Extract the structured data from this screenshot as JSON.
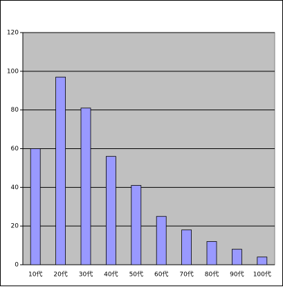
{
  "chart_data": {
    "type": "bar",
    "categories": [
      "10代",
      "20代",
      "30代",
      "40代",
      "50代",
      "60代",
      "70代",
      "80代",
      "90代",
      "100代"
    ],
    "values": [
      60,
      97,
      81,
      56,
      41,
      25,
      18,
      12,
      8,
      4
    ],
    "color": "#9999ff",
    "ylim": [
      0,
      120
    ],
    "yticks": [
      0,
      20,
      40,
      60,
      80,
      100,
      120
    ],
    "grid": true
  }
}
